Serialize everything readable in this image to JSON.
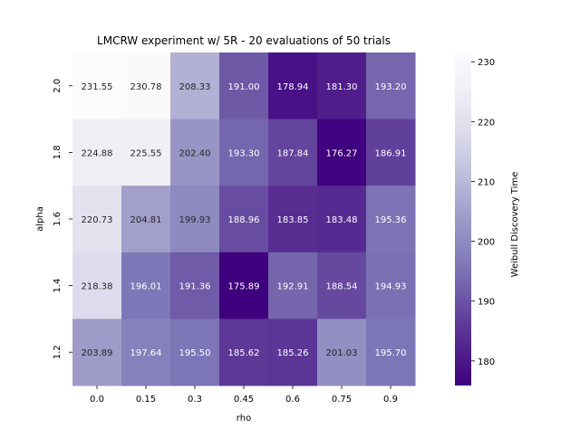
{
  "chart_data": {
    "type": "heatmap",
    "title": "LMCRW experiment w/ 5R - 20 evaluations of 50 trials",
    "xlabel": "rho",
    "ylabel": "alpha",
    "x_categories": [
      "0.0",
      "0.15",
      "0.3",
      "0.45",
      "0.6",
      "0.75",
      "0.9"
    ],
    "y_categories": [
      "2.0",
      "1.8",
      "1.6",
      "1.4",
      "1.2"
    ],
    "values": [
      [
        231.55,
        230.78,
        208.33,
        191.0,
        178.94,
        181.3,
        193.2
      ],
      [
        224.88,
        225.55,
        202.4,
        193.3,
        187.84,
        176.27,
        186.91
      ],
      [
        220.73,
        204.81,
        199.93,
        188.96,
        183.85,
        183.48,
        195.36
      ],
      [
        218.38,
        196.01,
        191.36,
        175.89,
        192.91,
        188.54,
        194.93
      ],
      [
        203.89,
        197.64,
        195.5,
        185.62,
        185.26,
        201.03,
        195.7
      ]
    ],
    "value_labels": [
      [
        "231.55",
        "230.78",
        "208.33",
        "191.00",
        "178.94",
        "181.30",
        "193.20"
      ],
      [
        "224.88",
        "225.55",
        "202.40",
        "193.30",
        "187.84",
        "176.27",
        "186.91"
      ],
      [
        "220.73",
        "204.81",
        "199.93",
        "188.96",
        "183.85",
        "183.48",
        "195.36"
      ],
      [
        "218.38",
        "196.01",
        "191.36",
        "175.89",
        "192.91",
        "188.54",
        "194.93"
      ],
      [
        "203.89",
        "197.64",
        "195.50",
        "185.62",
        "185.26",
        "201.03",
        "195.70"
      ]
    ],
    "colormap": "Purples_r",
    "vmin": 175.89,
    "vmax": 231.55,
    "colorbar": {
      "label": "Weibull Discovery Time",
      "ticks": [
        180,
        190,
        200,
        210,
        220,
        230
      ]
    }
  }
}
